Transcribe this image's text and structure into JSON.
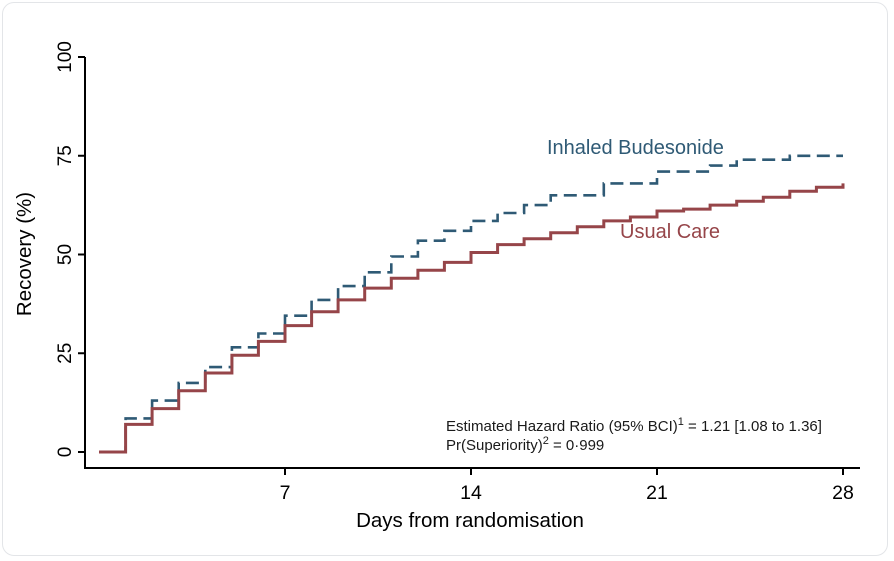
{
  "card": {
    "background": "#ffffff",
    "border_color": "#e3e5e8"
  },
  "chart_data": {
    "type": "line",
    "variant": "step",
    "title": "",
    "xlabel": "Days from randomisation",
    "ylabel": "Recovery (%)",
    "xticks": [
      7,
      14,
      21,
      28
    ],
    "yticks": [
      0,
      25,
      50,
      75,
      100
    ],
    "xlim": [
      0,
      28.6
    ],
    "ylim": [
      0,
      104
    ],
    "grid": false,
    "legend_position": "inline-labels-near-curves",
    "axis_color": "#000000",
    "x_days": [
      0,
      1,
      2,
      3,
      4,
      5,
      6,
      7,
      8,
      9,
      10,
      11,
      12,
      13,
      14,
      15,
      16,
      17,
      18,
      19,
      20,
      21,
      22,
      23,
      24,
      25,
      26,
      27,
      28
    ],
    "series": [
      {
        "name": "Inhaled Budesonide",
        "style": "dashed",
        "color": "#2f5a75",
        "values": [
          0,
          8.5,
          13,
          17.5,
          21.5,
          26.5,
          30,
          34.5,
          38.5,
          42,
          45.5,
          49.5,
          53.5,
          56,
          58.5,
          60.5,
          62.5,
          65,
          65,
          68,
          68,
          71,
          71,
          72.5,
          74,
          74,
          75,
          75,
          75
        ]
      },
      {
        "name": "Usual Care",
        "style": "solid",
        "color": "#964549",
        "values": [
          0,
          7,
          11,
          15.5,
          20,
          24.5,
          28,
          32,
          35.5,
          38.5,
          41.5,
          44,
          46,
          48,
          50.5,
          52.5,
          54,
          55.5,
          57,
          58.5,
          59.5,
          61,
          61.5,
          62.5,
          63.5,
          64.5,
          66,
          67,
          68
        ]
      }
    ],
    "annotations": [
      {
        "pre": "Estimated Hazard Ratio (95% BCI)",
        "sup": "1",
        "post": " = 1.21 [1.08 to 1.36]"
      },
      {
        "pre": "Pr(Superiority)",
        "sup": "2",
        "post": " = 0·999"
      }
    ],
    "annotation_color": "#1a1a1a"
  }
}
